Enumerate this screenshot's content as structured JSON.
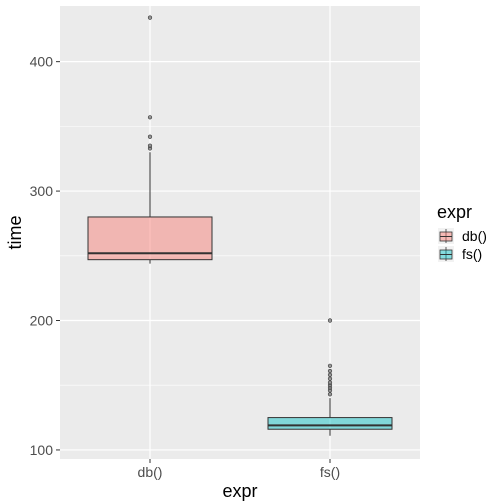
{
  "chart_data": {
    "type": "boxplot",
    "xlabel": "expr",
    "ylabel": "time",
    "ylim": [
      93,
      443
    ],
    "y_ticks": [
      100,
      200,
      300,
      400
    ],
    "categories": [
      "db()",
      "fs()"
    ],
    "grid": true,
    "legend": {
      "title": "expr",
      "position": "right",
      "entries": [
        "db()",
        "fs()"
      ]
    },
    "series": [
      {
        "category": "db()",
        "color": "#F8766D",
        "lower_whisker": 244,
        "q1": 247,
        "median": 252,
        "q3": 280,
        "upper_whisker": 330,
        "outliers": [
          333,
          335,
          342,
          357,
          434
        ]
      },
      {
        "category": "fs()",
        "color": "#00BFC4",
        "lower_whisker": 111,
        "q1": 116,
        "median": 119,
        "q3": 125,
        "upper_whisker": 140,
        "outliers": [
          143,
          146,
          148,
          150,
          152,
          155,
          158,
          161,
          165,
          200
        ]
      }
    ]
  }
}
